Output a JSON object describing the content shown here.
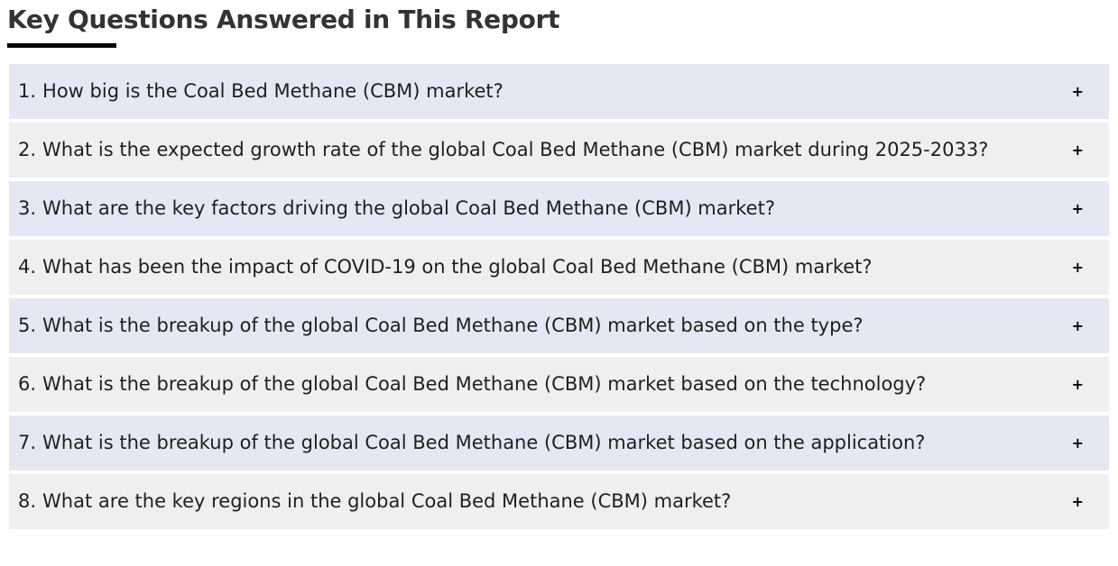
{
  "page": {
    "heading": "Key Questions Answered in This Report",
    "expand_symbol": "+"
  },
  "colors": {
    "row_odd_bg": "#e5e8f4",
    "row_even_bg": "#efefef",
    "heading_text": "#333333",
    "question_text": "#1f1f1f",
    "heading_underline": "#000000",
    "plus_color": "#000000"
  },
  "questions": [
    {
      "number": "1.",
      "text": "How big is the Coal Bed Methane (CBM) market?"
    },
    {
      "number": "2.",
      "text": "What is the expected growth rate of the global Coal Bed Methane (CBM) market during 2025-2033?"
    },
    {
      "number": "3.",
      "text": "What are the key factors driving the global Coal Bed Methane (CBM) market?"
    },
    {
      "number": "4.",
      "text": "What has been the impact of COVID-19 on the global Coal Bed Methane (CBM) market?"
    },
    {
      "number": "5.",
      "text": "What is the breakup of the global Coal Bed Methane (CBM) market based on the type?"
    },
    {
      "number": "6.",
      "text": "What is the breakup of the global Coal Bed Methane (CBM) market based on the technology?"
    },
    {
      "number": "7.",
      "text": "What is the breakup of the global Coal Bed Methane (CBM) market based on the application?"
    },
    {
      "number": "8.",
      "text": "What are the key regions in the global Coal Bed Methane (CBM) market?"
    }
  ]
}
